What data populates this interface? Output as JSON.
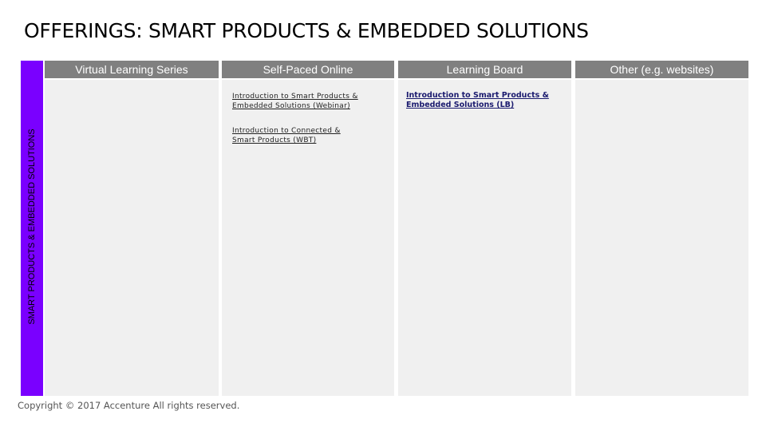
{
  "title": "OFFERINGS: SMART PRODUCTS & EMBEDDED SOLUTIONS",
  "columns": [
    "Virtual Learning Series",
    "Self-Paced Online",
    "Learning Board",
    "Other (e.g. websites)"
  ],
  "row_label": "SMART PRODUCTS & EMBEDDED SOLUTIONS",
  "self_paced_links": [
    {
      "line1": "Introduction to Smart Products &",
      "line2": "Embedded Solutions (Webinar)"
    },
    {
      "line1": "Introduction to Connected &",
      "line2": "Smart Products (WBT)"
    }
  ],
  "learning_board_links": [
    {
      "line1": "Introduction to Smart Products &",
      "line2": "Embedded Solutions (LB)"
    }
  ],
  "copyright": "Copyright © 2017 Accenture  All rights reserved.",
  "colors": {
    "header_bg": "#808080",
    "sidebar_accent": "#7a00ff",
    "cell_bg": "#f0f0f0"
  }
}
